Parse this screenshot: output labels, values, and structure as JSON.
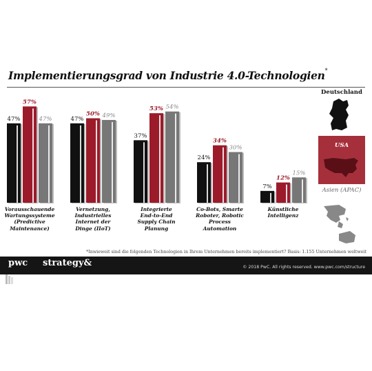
{
  "title": "Implementierungsgrad von Industrie 4.0-Technologien",
  "title_mark": "*",
  "legend": [
    {
      "label": "Deutschland",
      "color": "#111111"
    },
    {
      "label": "USA",
      "color": "#9b1b2a"
    },
    {
      "label": "Asien (APAC)",
      "color": "#777777"
    }
  ],
  "chart_data": {
    "type": "bar",
    "categories": [
      "Vorausschauende Wartungssysteme (Predictive Maintenance)",
      "Vernetzung, Industrielles Internet der Dinge (IIoT)",
      "Integrierte End-to-End Supply Chain Planung",
      "Co-Bots, Smarte Roboter, Robotic Process Automation",
      "Künstliche Intelligenz"
    ],
    "category_lines": [
      [
        "Vorausschauende",
        "Wartungssysteme",
        "(Predictive",
        "Maintenance)"
      ],
      [
        "Vernetzung,",
        "Industrielles",
        "Internet der",
        "Dinge (IIoT)"
      ],
      [
        "Integrierte",
        "End-to-End",
        "Supply Chain",
        "Planung"
      ],
      [
        "Co-Bots, Smarte",
        "Roboter, Robotic",
        "Process",
        "Automation"
      ],
      [
        "Künstliche",
        "Intelligenz"
      ]
    ],
    "series": [
      {
        "name": "Deutschland",
        "values": [
          47,
          47,
          37,
          24,
          7
        ],
        "labels": [
          "47%",
          "47%",
          "37%",
          "24%",
          "7%"
        ]
      },
      {
        "name": "USA",
        "values": [
          57,
          50,
          53,
          34,
          12
        ],
        "labels": [
          "57%",
          "50%",
          "53%",
          "34%",
          "12%"
        ]
      },
      {
        "name": "Asien (APAC)",
        "values": [
          47,
          49,
          54,
          30,
          15
        ],
        "labels": [
          "47%",
          "49%",
          "54%",
          "30%",
          "15%"
        ]
      }
    ],
    "colors": {
      "Deutschland": "#111111",
      "USA": "#9b1b2a",
      "Asien (APAC)": "#777777"
    },
    "ylim": [
      0,
      60
    ],
    "grid": false
  },
  "footnote": "*Inwieweit sind die folgenden Technologien in Ihrem Unternehmen bereits implementiert? Basis: 1.155 Unternehmen weltweit",
  "footer": {
    "pwc": "pwc",
    "strategy": "strategy&",
    "copyright": "© 2018 PwC. All rights reserved. www.pwc.com/structure"
  }
}
